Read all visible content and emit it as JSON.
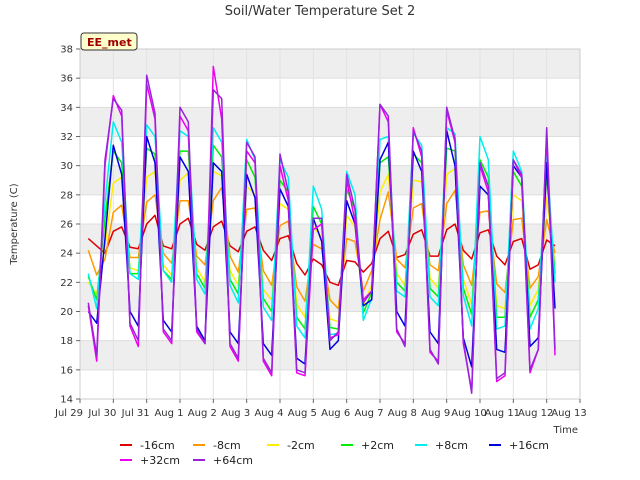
{
  "chart_data": {
    "type": "line",
    "title": "Soil/Water Temperature Set 2",
    "xlabel": "Time",
    "ylabel": "Temperature (C)",
    "badge": "EE_met",
    "ylim": [
      14,
      38
    ],
    "yticks": [
      14,
      16,
      18,
      20,
      22,
      24,
      26,
      28,
      30,
      32,
      34,
      36,
      38
    ],
    "xlim": [
      0,
      15
    ],
    "xticks": [
      {
        "label": "Jul 29",
        "x": 0
      },
      {
        "label": "Jul 30",
        "x": 1
      },
      {
        "label": "Jul 31",
        "x": 2
      },
      {
        "label": "Aug 1",
        "x": 3
      },
      {
        "label": "Aug 2",
        "x": 4
      },
      {
        "label": "Aug 3",
        "x": 5
      },
      {
        "label": "Aug 4",
        "x": 6
      },
      {
        "label": "Aug 5",
        "x": 7
      },
      {
        "label": "Aug 6",
        "x": 8
      },
      {
        "label": "Aug 7",
        "x": 9
      },
      {
        "label": "Aug 8",
        "x": 10
      },
      {
        "label": "Aug 9",
        "x": 11
      },
      {
        "label": "Aug 10",
        "x": 12
      },
      {
        "label": "Aug 11",
        "x": 13
      },
      {
        "label": "Aug 12",
        "x": 14
      },
      {
        "label": "Aug 13",
        "x": 15
      }
    ],
    "grid": true,
    "legend_position": "bottom",
    "x": [
      0.25,
      0.5,
      0.75,
      1.0,
      1.25,
      1.5,
      1.75,
      2.0,
      2.25,
      2.5,
      2.75,
      3.0,
      3.25,
      3.5,
      3.75,
      4.0,
      4.25,
      4.5,
      4.75,
      5.0,
      5.25,
      5.5,
      5.75,
      6.0,
      6.25,
      6.5,
      6.75,
      7.0,
      7.25,
      7.5,
      7.75,
      8.0,
      8.25,
      8.5,
      8.75,
      9.0,
      9.25,
      9.5,
      9.75,
      10.0,
      10.25,
      10.5,
      10.75,
      11.0,
      11.25,
      11.5,
      11.75,
      12.0,
      12.25,
      12.5,
      12.75,
      13.0,
      13.25,
      13.5,
      13.75,
      14.0,
      14.25
    ],
    "series": [
      {
        "name": "-16cm",
        "color": "#dd0000",
        "values": [
          25.0,
          24.5,
          24.0,
          25.5,
          25.8,
          24.4,
          24.3,
          26.0,
          26.6,
          24.5,
          24.3,
          26.0,
          26.4,
          24.6,
          24.2,
          25.8,
          26.2,
          24.5,
          24.1,
          25.5,
          25.8,
          24.2,
          23.5,
          25.0,
          25.2,
          23.3,
          22.5,
          23.6,
          23.2,
          22.0,
          21.8,
          23.5,
          23.4,
          22.7,
          23.3,
          25.0,
          25.5,
          23.7,
          23.9,
          25.3,
          25.6,
          23.8,
          23.8,
          25.6,
          26.0,
          24.2,
          23.6,
          25.4,
          25.6,
          23.8,
          23.2,
          24.8,
          25.0,
          22.9,
          23.2,
          24.9,
          24.5
        ]
      },
      {
        "name": "-8cm",
        "color": "#ff9900",
        "values": [
          24.2,
          22.5,
          23.6,
          26.8,
          27.3,
          23.7,
          23.7,
          27.5,
          28.0,
          24.0,
          23.3,
          27.6,
          27.6,
          23.8,
          23.2,
          27.6,
          28.5,
          23.8,
          22.7,
          27.0,
          27.1,
          22.8,
          21.8,
          25.9,
          26.2,
          21.7,
          20.7,
          24.6,
          24.3,
          20.8,
          20.2,
          25.0,
          24.8,
          21.4,
          22.8,
          26.3,
          28.2,
          23.6,
          23.0,
          27.1,
          27.4,
          23.2,
          22.8,
          27.4,
          28.3,
          23.2,
          21.8,
          26.8,
          26.9,
          21.9,
          21.3,
          26.3,
          26.4,
          21.6,
          22.4,
          26.3,
          24.0
        ]
      },
      {
        "name": "-2cm",
        "color": "#ffee00",
        "values": [
          22.0,
          21.2,
          24.5,
          28.8,
          29.2,
          23.0,
          22.8,
          29.2,
          29.6,
          23.2,
          22.5,
          29.0,
          29.5,
          23.0,
          22.0,
          29.6,
          29.3,
          22.8,
          21.8,
          28.6,
          28.0,
          21.5,
          20.8,
          27.4,
          27.0,
          20.5,
          19.6,
          25.8,
          25.1,
          19.5,
          19.3,
          26.6,
          25.8,
          20.4,
          21.8,
          28.2,
          29.4,
          22.6,
          21.8,
          29.0,
          28.9,
          22.3,
          21.6,
          29.4,
          29.8,
          22.2,
          20.5,
          28.6,
          28.0,
          20.4,
          20.2,
          28.0,
          27.6,
          20.4,
          21.5,
          27.8,
          23.2
        ]
      },
      {
        "name": "+2cm",
        "color": "#00ee00",
        "values": [
          22.4,
          20.8,
          26.4,
          31.0,
          30.2,
          22.6,
          22.6,
          31.2,
          30.8,
          22.8,
          22.2,
          31.0,
          31.0,
          22.6,
          21.6,
          31.4,
          30.6,
          22.2,
          21.2,
          30.4,
          29.2,
          20.9,
          20.0,
          29.0,
          28.2,
          19.6,
          18.8,
          27.2,
          26.0,
          18.9,
          18.8,
          28.4,
          27.0,
          19.9,
          21.3,
          30.2,
          30.6,
          22.0,
          21.4,
          30.8,
          30.2,
          21.6,
          21.0,
          31.2,
          31.0,
          21.6,
          19.8,
          30.4,
          29.2,
          19.6,
          19.6,
          29.6,
          28.6,
          19.6,
          20.8,
          29.4,
          22.6
        ]
      },
      {
        "name": "+8cm",
        "color": "#00eeee",
        "values": [
          22.6,
          20.2,
          27.5,
          33.0,
          31.6,
          22.6,
          22.2,
          32.8,
          32.0,
          22.8,
          22.0,
          32.4,
          32.0,
          22.2,
          21.2,
          32.6,
          31.6,
          21.8,
          20.6,
          31.8,
          30.4,
          20.3,
          19.4,
          30.4,
          29.2,
          19.0,
          18.2,
          28.6,
          27.0,
          18.4,
          18.5,
          29.6,
          28.0,
          19.4,
          20.9,
          31.8,
          32.0,
          21.4,
          21.0,
          32.2,
          31.4,
          21.0,
          20.4,
          32.6,
          32.2,
          21.1,
          19.0,
          32.0,
          30.4,
          18.8,
          19.0,
          31.0,
          29.6,
          18.8,
          20.2,
          30.8,
          22.0
        ]
      },
      {
        "name": "+16cm",
        "color": "#0000dd",
        "values": [
          20.0,
          19.2,
          25.0,
          31.4,
          29.4,
          20.0,
          19.0,
          32.0,
          30.2,
          19.4,
          18.6,
          30.6,
          29.6,
          19.0,
          18.0,
          30.2,
          29.6,
          18.6,
          17.8,
          29.4,
          27.8,
          17.8,
          17.0,
          28.4,
          27.2,
          16.8,
          16.4,
          26.4,
          24.8,
          17.4,
          18.0,
          27.6,
          26.0,
          20.4,
          20.8,
          30.4,
          31.6,
          20.0,
          19.0,
          31.0,
          29.6,
          18.6,
          17.8,
          32.4,
          30.0,
          18.2,
          16.2,
          28.6,
          28.0,
          17.4,
          17.2,
          30.0,
          29.2,
          17.6,
          18.2,
          30.2,
          20.2
        ]
      },
      {
        "name": "+32cm",
        "color": "#ee00ee",
        "values": [
          20.4,
          16.6,
          30.0,
          34.8,
          33.4,
          19.0,
          17.6,
          35.6,
          33.2,
          18.6,
          17.8,
          33.4,
          32.4,
          18.6,
          17.8,
          36.8,
          33.2,
          17.6,
          16.6,
          31.0,
          30.2,
          16.6,
          15.6,
          30.0,
          27.6,
          15.8,
          15.6,
          25.6,
          26.0,
          18.2,
          18.4,
          29.0,
          26.2,
          20.8,
          21.4,
          34.2,
          33.0,
          18.6,
          17.8,
          32.6,
          30.6,
          17.2,
          16.6,
          33.8,
          31.6,
          17.8,
          14.6,
          30.0,
          28.2,
          15.2,
          15.6,
          30.4,
          29.2,
          15.8,
          17.4,
          32.2,
          17.0
        ]
      },
      {
        "name": "+64cm",
        "color": "#9922dd",
        "values": [
          20.6,
          17.0,
          30.4,
          34.6,
          33.8,
          19.2,
          18.0,
          36.2,
          33.6,
          18.8,
          18.0,
          34.0,
          33.0,
          18.8,
          17.8,
          35.2,
          34.6,
          17.8,
          16.8,
          31.6,
          30.6,
          16.8,
          15.8,
          30.8,
          28.2,
          16.0,
          15.8,
          26.4,
          26.4,
          18.0,
          18.6,
          29.4,
          27.0,
          20.6,
          21.4,
          34.2,
          33.4,
          18.8,
          17.6,
          32.4,
          31.0,
          17.4,
          16.4,
          34.0,
          31.8,
          18.0,
          14.4,
          30.2,
          28.6,
          15.4,
          15.8,
          30.4,
          29.4,
          16.0,
          17.4,
          32.6,
          17.4
        ]
      }
    ]
  }
}
